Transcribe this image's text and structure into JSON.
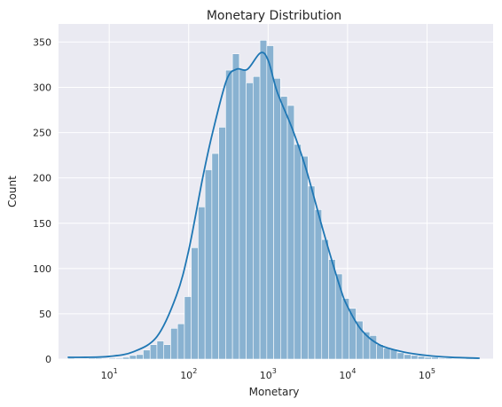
{
  "chart_data": {
    "type": "bar",
    "title": "Monetary Distribution",
    "xlabel": "Monetary",
    "ylabel": "Count",
    "x_scale": "log",
    "x_range": [
      2.3,
      680000
    ],
    "ylim": [
      0,
      370
    ],
    "y_ticks": [
      0,
      50,
      100,
      150,
      200,
      250,
      300,
      350
    ],
    "x_ticks": [
      {
        "value": 10,
        "base": "10",
        "exp": "1"
      },
      {
        "value": 100,
        "base": "10",
        "exp": "2"
      },
      {
        "value": 1000,
        "base": "10",
        "exp": "3"
      },
      {
        "value": 10000,
        "base": "10",
        "exp": "4"
      },
      {
        "value": 100000,
        "base": "10",
        "exp": "5"
      }
    ],
    "grid": true,
    "histogram": {
      "bin_start": 3,
      "bin_end": 460000,
      "counts": [
        1,
        0,
        0,
        1,
        1,
        0,
        1,
        1,
        2,
        4,
        5,
        10,
        16,
        20,
        16,
        34,
        39,
        69,
        123,
        168,
        209,
        227,
        256,
        319,
        337,
        320,
        305,
        312,
        352,
        346,
        310,
        290,
        280,
        237,
        224,
        191,
        165,
        132,
        110,
        94,
        67,
        56,
        42,
        30,
        26,
        16,
        12,
        11,
        7,
        5,
        4,
        3,
        2,
        2,
        1,
        1,
        0,
        0,
        1,
        1
      ]
    },
    "kde": {
      "x": [
        3,
        5,
        10,
        20,
        40,
        70,
        100,
        150,
        200,
        300,
        400,
        550,
        800,
        1000,
        1300,
        2000,
        3000,
        5000,
        8000,
        10000,
        15000,
        25000,
        50000,
        100000,
        200000,
        460000
      ],
      "y": [
        2,
        2,
        3,
        8,
        25,
        70,
        120,
        200,
        250,
        308,
        320,
        320,
        338,
        330,
        295,
        255,
        210,
        140,
        80,
        58,
        32,
        16,
        8,
        4,
        2,
        1
      ]
    },
    "colors": {
      "bar_fill": "#89b2d1",
      "bar_edge": "#ffffff",
      "kde_line": "#1f77b4",
      "plot_bg": "#eaeaf2",
      "grid": "#ffffff"
    }
  }
}
